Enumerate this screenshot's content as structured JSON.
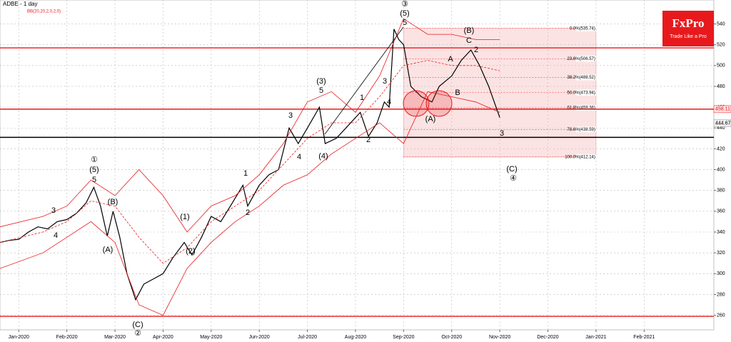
{
  "chart_data": {
    "type": "line",
    "title": "ADBE - 1 day",
    "subtitle": "BB(20,20,2,0,2,0)",
    "ylim": [
      246,
      563
    ],
    "yticks": [
      260,
      280,
      300,
      320,
      340,
      360,
      380,
      400,
      420,
      440,
      460,
      480,
      500,
      520,
      540
    ],
    "xlim": [
      -0.39,
      14.45
    ],
    "xticks": [
      {
        "value": 0,
        "label": "Jan-2020"
      },
      {
        "value": 1,
        "label": "Feb-2020"
      },
      {
        "value": 2,
        "label": "Mar-2020"
      },
      {
        "value": 3,
        "label": "Apr-2020"
      },
      {
        "value": 4,
        "label": "May-2020"
      },
      {
        "value": 5,
        "label": "Jun-2020"
      },
      {
        "value": 6,
        "label": "Jul-2020"
      },
      {
        "value": 7,
        "label": "Aug-2020"
      },
      {
        "value": 8,
        "label": "Sep-2020"
      },
      {
        "value": 9,
        "label": "Oct-2020"
      },
      {
        "value": 10,
        "label": "Nov-2020"
      },
      {
        "value": 11,
        "label": "Dec-2020"
      },
      {
        "value": 12,
        "label": "Jan-2021"
      },
      {
        "value": 13,
        "label": "Feb-2021"
      }
    ],
    "grid": true,
    "series": [
      {
        "name": "ADBE",
        "color": "#000000",
        "dashed": false,
        "x": [
          -0.39,
          -0.2,
          0,
          0.2,
          0.4,
          0.6,
          0.8,
          1.0,
          1.2,
          1.4,
          1.56,
          1.7,
          1.84,
          1.96,
          2.1,
          2.25,
          2.43,
          2.6,
          2.8,
          3.0,
          3.2,
          3.44,
          3.6,
          3.8,
          4.0,
          4.2,
          4.4,
          4.66,
          4.76,
          5.0,
          5.2,
          5.4,
          5.62,
          5.81,
          6.0,
          6.25,
          6.37,
          6.6,
          6.8,
          7.1,
          7.27,
          7.45,
          7.6,
          7.7,
          7.8,
          7.9,
          8.0,
          8.15,
          8.37,
          8.59,
          8.74,
          9.0,
          9.2,
          9.4,
          9.58,
          9.77,
          10.0
        ],
        "values": [
          330,
          332,
          333,
          340,
          345,
          343,
          350,
          352,
          358,
          368,
          383,
          365,
          336,
          360,
          335,
          300,
          275,
          290,
          295,
          300,
          315,
          330,
          318,
          335,
          355,
          350,
          365,
          385,
          365,
          385,
          395,
          400,
          440,
          425,
          440,
          460,
          425,
          430,
          440,
          455,
          432,
          445,
          465,
          460,
          535,
          525,
          520,
          480,
          470,
          465,
          480,
          490,
          505,
          515,
          500,
          480,
          450
        ]
      },
      {
        "name": "BB upper",
        "color": "#e8191c",
        "dashed": false,
        "x": [
          -0.39,
          0.5,
          1.0,
          1.5,
          2.0,
          2.5,
          3.0,
          3.5,
          4.0,
          4.5,
          5.0,
          5.5,
          6.0,
          6.5,
          7.0,
          7.5,
          8.0,
          8.5,
          9.0,
          9.5,
          10.0
        ],
        "values": [
          345,
          355,
          365,
          390,
          375,
          400,
          375,
          340,
          365,
          375,
          395,
          425,
          465,
          475,
          455,
          490,
          545,
          530,
          530,
          525,
          525
        ]
      },
      {
        "name": "BB middle",
        "color": "#e8191c",
        "dashed": true,
        "x": [
          -0.39,
          0.5,
          1.0,
          1.5,
          2.0,
          2.5,
          3.0,
          3.5,
          4.0,
          4.5,
          5.0,
          5.5,
          6.0,
          6.5,
          7.0,
          7.5,
          8.0,
          8.5,
          9.0,
          9.5,
          10.0
        ],
        "values": [
          330,
          340,
          350,
          370,
          365,
          335,
          310,
          325,
          350,
          365,
          380,
          405,
          430,
          445,
          445,
          470,
          500,
          505,
          500,
          500,
          495
        ]
      },
      {
        "name": "BB lower",
        "color": "#e8191c",
        "dashed": false,
        "x": [
          -0.39,
          0.5,
          1.0,
          1.5,
          2.0,
          2.5,
          3.0,
          3.5,
          4.0,
          4.5,
          5.0,
          5.5,
          6.0,
          6.5,
          7.0,
          7.5,
          8.0,
          8.5,
          9.0,
          9.5,
          10.0
        ],
        "values": [
          305,
          320,
          335,
          350,
          330,
          270,
          260,
          305,
          330,
          350,
          365,
          385,
          395,
          415,
          430,
          445,
          425,
          475,
          470,
          465,
          455
        ]
      }
    ],
    "levels": [
      {
        "value": 517,
        "color": "#e8191c"
      },
      {
        "value": 458.11,
        "color": "#e8191c"
      },
      {
        "value": 431,
        "color": "#000000"
      },
      {
        "value": 259,
        "color": "#e8191c"
      }
    ],
    "price_labels": [
      458.11,
      444.67
    ],
    "fib_x": [
      8.0,
      12.0
    ],
    "fib_levels": [
      {
        "value": 535.74,
        "label": "0.0%(535.74)"
      },
      {
        "value": 506.57,
        "label": "23.6%(506.57)"
      },
      {
        "value": 488.52,
        "label": "38.2%(488.52)"
      },
      {
        "value": 473.94,
        "label": "50.0%(473.94)"
      },
      {
        "value": 459.36,
        "label": "61.8%(459.36)"
      },
      {
        "value": 438.59,
        "label": "78.6%(438.59)"
      },
      {
        "value": 412.14,
        "label": "100.0%(412.14)"
      }
    ],
    "annotations": [
      "①",
      "(5)",
      "5",
      "3",
      "4",
      "(B)",
      "(A)",
      "(C)",
      "②",
      "(1)",
      "(2)",
      "1",
      "2",
      "3",
      "4",
      "(3)",
      "5",
      "(4)",
      "1",
      "2",
      "3",
      "4",
      "③",
      "(5)",
      "5",
      "A",
      "(A)",
      "B",
      "(B)",
      "C",
      "2",
      "3",
      "(C)",
      "④"
    ]
  },
  "logo": {
    "title": "FxPro",
    "tagline": "Trade Like a Pro"
  }
}
